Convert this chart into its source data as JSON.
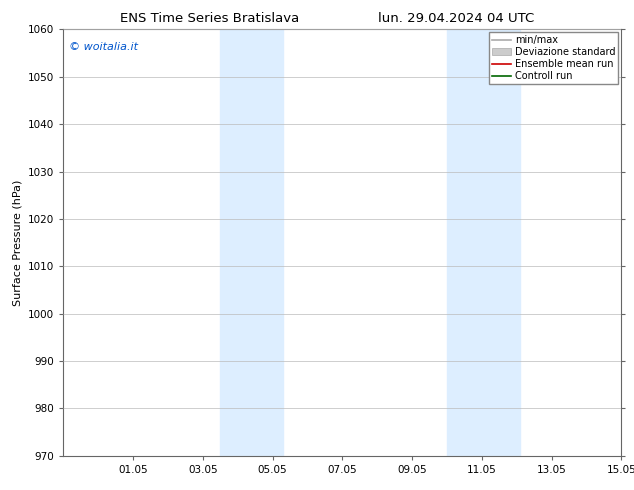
{
  "title_left": "ENS Time Series Bratislava",
  "title_right": "lun. 29.04.2024 04 UTC",
  "ylabel": "Surface Pressure (hPa)",
  "ylim": [
    970,
    1060
  ],
  "yticks": [
    970,
    980,
    990,
    1000,
    1010,
    1020,
    1030,
    1040,
    1050,
    1060
  ],
  "xlim": [
    0,
    16
  ],
  "xtick_labels": [
    "01.05",
    "03.05",
    "05.05",
    "07.05",
    "09.05",
    "11.05",
    "13.05",
    "15.05"
  ],
  "xtick_positions": [
    2,
    4,
    6,
    8,
    10,
    12,
    14,
    16
  ],
  "shaded_bands": [
    {
      "x_start": 4.5,
      "x_end": 6.3,
      "color": "#ddeeff"
    },
    {
      "x_start": 11.0,
      "x_end": 13.1,
      "color": "#ddeeff"
    }
  ],
  "watermark_text": "© woitalia.it",
  "watermark_color": "#0055cc",
  "legend_entries": [
    {
      "label": "min/max",
      "color": "#aaaaaa",
      "lw": 1.2,
      "style": "line"
    },
    {
      "label": "Deviazione standard",
      "color": "#cccccc",
      "lw": 5,
      "style": "bar"
    },
    {
      "label": "Ensemble mean run",
      "color": "#cc0000",
      "lw": 1.2,
      "style": "line"
    },
    {
      "label": "Controll run",
      "color": "#006600",
      "lw": 1.2,
      "style": "line"
    }
  ],
  "bg_color": "#ffffff",
  "grid_color": "#bbbbbb",
  "title_fontsize": 9.5,
  "label_fontsize": 8,
  "tick_fontsize": 7.5,
  "watermark_fontsize": 8,
  "legend_fontsize": 7
}
